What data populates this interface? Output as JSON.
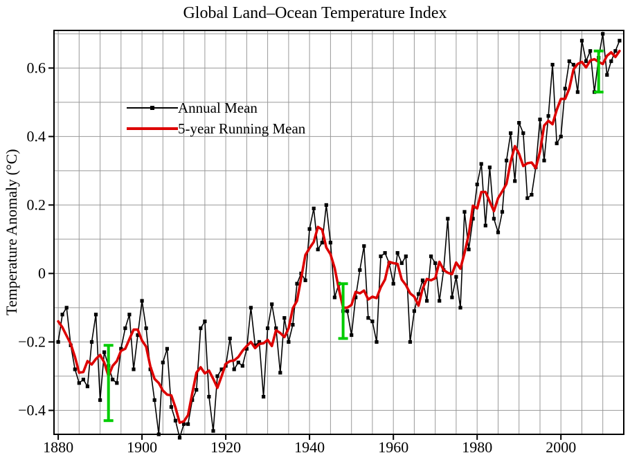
{
  "colors": {
    "background": "#ffffff",
    "grid": "#999999",
    "axis": "#000000"
  },
  "chart_data": {
    "type": "line",
    "title": "Global Land–Ocean Temperature Index",
    "xlabel": "",
    "ylabel": "Temperature Anomaly (°C)",
    "xlim": [
      1879,
      2015
    ],
    "ylim": [
      -0.47,
      0.71
    ],
    "x_ticks": [
      1880,
      1900,
      1920,
      1940,
      1960,
      1980,
      2000
    ],
    "y_ticks": [
      -0.4,
      -0.2,
      0,
      0.2,
      0.4,
      0.6
    ],
    "y_tick_labels": [
      "−0.4",
      "−0.2",
      "0",
      "0.2",
      "0.4",
      "0.6"
    ],
    "x_minor_step": 5,
    "y_minor_step": 0.1,
    "grid": true,
    "legend_position": "upper-left-inside",
    "series": [
      {
        "name": "Annual Mean",
        "type": "line+marker",
        "color": "#000000",
        "start_year": 1880,
        "values": [
          -0.2,
          -0.12,
          -0.1,
          -0.21,
          -0.28,
          -0.32,
          -0.31,
          -0.33,
          -0.2,
          -0.12,
          -0.37,
          -0.23,
          -0.27,
          -0.31,
          -0.32,
          -0.22,
          -0.16,
          -0.12,
          -0.28,
          -0.18,
          -0.08,
          -0.16,
          -0.28,
          -0.37,
          -0.47,
          -0.26,
          -0.22,
          -0.39,
          -0.43,
          -0.48,
          -0.44,
          -0.44,
          -0.37,
          -0.34,
          -0.16,
          -0.14,
          -0.36,
          -0.46,
          -0.3,
          -0.28,
          -0.27,
          -0.19,
          -0.28,
          -0.26,
          -0.27,
          -0.22,
          -0.1,
          -0.21,
          -0.2,
          -0.36,
          -0.16,
          -0.09,
          -0.16,
          -0.29,
          -0.13,
          -0.2,
          -0.15,
          -0.03,
          0.0,
          -0.02,
          0.13,
          0.19,
          0.07,
          0.09,
          0.2,
          0.09,
          -0.07,
          -0.03,
          -0.11,
          -0.11,
          -0.18,
          -0.07,
          0.01,
          0.08,
          -0.13,
          -0.14,
          -0.2,
          0.05,
          0.06,
          0.03,
          -0.03,
          0.06,
          0.03,
          0.05,
          -0.2,
          -0.11,
          -0.06,
          -0.02,
          -0.08,
          0.05,
          0.03,
          -0.08,
          0.01,
          0.16,
          -0.07,
          -0.01,
          -0.1,
          0.18,
          0.07,
          0.16,
          0.26,
          0.32,
          0.14,
          0.31,
          0.16,
          0.12,
          0.18,
          0.33,
          0.41,
          0.27,
          0.44,
          0.41,
          0.22,
          0.23,
          0.31,
          0.45,
          0.33,
          0.46,
          0.61,
          0.38,
          0.4,
          0.54,
          0.62,
          0.61,
          0.53,
          0.68,
          0.62,
          0.65,
          0.53,
          0.63,
          0.7,
          0.58,
          0.62,
          0.65,
          0.68
        ]
      },
      {
        "name": "5-year Running Mean",
        "type": "line",
        "color": "#dd0000",
        "derived_from": "Annual Mean",
        "window": 5
      }
    ],
    "error_bars": {
      "color": "#00cc00",
      "points": [
        {
          "year": 1892,
          "center": -0.32,
          "half_height": 0.11
        },
        {
          "year": 1948,
          "center": -0.11,
          "half_height": 0.08
        },
        {
          "year": 2009,
          "center": 0.59,
          "half_height": 0.06
        }
      ]
    }
  }
}
